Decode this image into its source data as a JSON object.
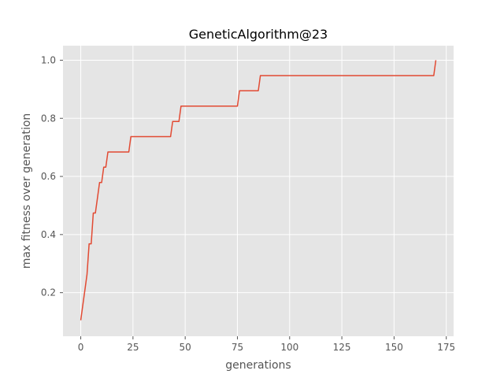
{
  "chart_data": {
    "type": "line",
    "title": "GeneticAlgorithm@23",
    "xlabel": "generations",
    "ylabel": "max fitness over generation",
    "xlim": [
      -8.5,
      178.5
    ],
    "ylim": [
      0.05,
      1.05
    ],
    "xticks": [
      0,
      25,
      50,
      75,
      100,
      125,
      150,
      175
    ],
    "yticks": [
      0.2,
      0.4,
      0.6,
      0.8,
      1.0
    ],
    "xtick_labels": [
      "0",
      "25",
      "50",
      "75",
      "100",
      "125",
      "150",
      "175"
    ],
    "ytick_labels": [
      "0.2",
      "0.4",
      "0.6",
      "0.8",
      "1.0"
    ],
    "grid": true,
    "background_color": "#e5e5e5",
    "grid_color": "#ffffff",
    "series": [
      {
        "color": "#e24a33",
        "x": [
          0,
          1,
          2,
          3,
          4,
          5,
          6,
          7,
          8,
          9,
          10,
          11,
          12,
          13,
          23,
          24,
          43,
          44,
          47,
          48,
          75,
          76,
          85,
          86,
          169,
          170
        ],
        "y": [
          0.105,
          0.158,
          0.21,
          0.263,
          0.368,
          0.368,
          0.474,
          0.474,
          0.526,
          0.579,
          0.579,
          0.632,
          0.632,
          0.684,
          0.684,
          0.737,
          0.737,
          0.789,
          0.789,
          0.842,
          0.842,
          0.895,
          0.895,
          0.947,
          0.947,
          1.0
        ]
      }
    ]
  }
}
